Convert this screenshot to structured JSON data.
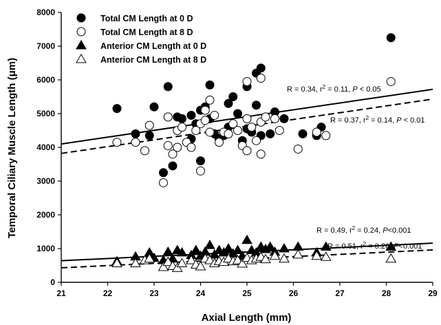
{
  "chart_data": {
    "type": "scatter",
    "title": "",
    "xlabel": "Axial Length (mm)",
    "ylabel": "Temporal Ciliary Muscle Length (μm)",
    "xlim": [
      21,
      29
    ],
    "ylim": [
      0,
      8000
    ],
    "x_ticks": [
      "21",
      "22",
      "23",
      "24",
      "25",
      "26",
      "27",
      "28",
      "29"
    ],
    "y_ticks": [
      "0",
      "1000",
      "2000",
      "3000",
      "4000",
      "5000",
      "6000",
      "7000",
      "8000"
    ],
    "legend_position": "top-left",
    "series": [
      {
        "name": "Total CM Length at 0 D",
        "marker": "filled-circle",
        "points": [
          [
            22.2,
            5150
          ],
          [
            22.6,
            4400
          ],
          [
            22.9,
            4350
          ],
          [
            23.0,
            5200
          ],
          [
            23.2,
            3250
          ],
          [
            23.3,
            5800
          ],
          [
            23.4,
            3450
          ],
          [
            23.5,
            4900
          ],
          [
            23.6,
            4850
          ],
          [
            23.8,
            4950
          ],
          [
            23.8,
            4250
          ],
          [
            23.9,
            4700
          ],
          [
            24.0,
            3600
          ],
          [
            24.0,
            5100
          ],
          [
            24.1,
            5200
          ],
          [
            24.2,
            5850
          ],
          [
            24.2,
            4850
          ],
          [
            24.3,
            4400
          ],
          [
            24.4,
            4250
          ],
          [
            24.5,
            4350
          ],
          [
            24.6,
            5300
          ],
          [
            24.6,
            4600
          ],
          [
            24.7,
            5500
          ],
          [
            24.8,
            5000
          ],
          [
            24.9,
            4200
          ],
          [
            25.0,
            5800
          ],
          [
            25.0,
            4550
          ],
          [
            25.1,
            4450
          ],
          [
            25.2,
            5250
          ],
          [
            25.2,
            6200
          ],
          [
            25.3,
            6350
          ],
          [
            25.3,
            4350
          ],
          [
            25.5,
            4400
          ],
          [
            25.6,
            5050
          ],
          [
            25.8,
            4850
          ],
          [
            26.2,
            4400
          ],
          [
            26.5,
            4350
          ],
          [
            26.6,
            4600
          ],
          [
            28.1,
            7250
          ]
        ]
      },
      {
        "name": "Total CM Length at 8 D",
        "marker": "open-circle",
        "points": [
          [
            22.2,
            4150
          ],
          [
            22.6,
            4150
          ],
          [
            22.8,
            3900
          ],
          [
            22.9,
            4650
          ],
          [
            23.2,
            2950
          ],
          [
            23.3,
            4900
          ],
          [
            23.3,
            4050
          ],
          [
            23.4,
            3800
          ],
          [
            23.5,
            4500
          ],
          [
            23.5,
            4000
          ],
          [
            23.6,
            4600
          ],
          [
            23.7,
            4150
          ],
          [
            23.8,
            4000
          ],
          [
            23.9,
            4500
          ],
          [
            24.0,
            4700
          ],
          [
            24.0,
            3300
          ],
          [
            24.1,
            5100
          ],
          [
            24.1,
            4800
          ],
          [
            24.2,
            5400
          ],
          [
            24.2,
            4450
          ],
          [
            24.3,
            4950
          ],
          [
            24.4,
            4150
          ],
          [
            24.5,
            4450
          ],
          [
            24.6,
            4400
          ],
          [
            24.7,
            4700
          ],
          [
            24.8,
            4500
          ],
          [
            24.9,
            4050
          ],
          [
            25.0,
            4850
          ],
          [
            25.0,
            5950
          ],
          [
            25.0,
            3900
          ],
          [
            25.1,
            4600
          ],
          [
            25.2,
            4200
          ],
          [
            25.3,
            4750
          ],
          [
            25.3,
            6050
          ],
          [
            25.3,
            3800
          ],
          [
            25.4,
            4900
          ],
          [
            25.6,
            4850
          ],
          [
            25.7,
            4500
          ],
          [
            26.1,
            3950
          ],
          [
            26.5,
            4450
          ],
          [
            26.7,
            4350
          ],
          [
            28.1,
            5950
          ]
        ]
      },
      {
        "name": "Anterior CM Length at 0 D",
        "marker": "filled-triangle",
        "points": [
          [
            22.2,
            620
          ],
          [
            22.6,
            760
          ],
          [
            22.9,
            880
          ],
          [
            23.0,
            720
          ],
          [
            23.2,
            650
          ],
          [
            23.3,
            900
          ],
          [
            23.4,
            700
          ],
          [
            23.5,
            950
          ],
          [
            23.6,
            880
          ],
          [
            23.8,
            800
          ],
          [
            23.9,
            950
          ],
          [
            24.0,
            780
          ],
          [
            24.1,
            900
          ],
          [
            24.2,
            1100
          ],
          [
            24.3,
            820
          ],
          [
            24.4,
            950
          ],
          [
            24.5,
            880
          ],
          [
            24.6,
            1000
          ],
          [
            24.7,
            850
          ],
          [
            24.8,
            950
          ],
          [
            24.9,
            780
          ],
          [
            25.0,
            1250
          ],
          [
            25.1,
            950
          ],
          [
            25.2,
            880
          ],
          [
            25.3,
            1050
          ],
          [
            25.4,
            980
          ],
          [
            25.5,
            1050
          ],
          [
            25.6,
            900
          ],
          [
            25.8,
            1000
          ],
          [
            26.1,
            1050
          ],
          [
            26.5,
            880
          ],
          [
            26.7,
            1050
          ],
          [
            28.1,
            1050
          ]
        ]
      },
      {
        "name": "Anterior CM Length at 8 D",
        "marker": "open-triangle",
        "points": [
          [
            22.2,
            560
          ],
          [
            22.6,
            560
          ],
          [
            22.8,
            650
          ],
          [
            22.9,
            700
          ],
          [
            23.2,
            450
          ],
          [
            23.3,
            600
          ],
          [
            23.4,
            480
          ],
          [
            23.5,
            420
          ],
          [
            23.6,
            560
          ],
          [
            23.8,
            650
          ],
          [
            23.9,
            520
          ],
          [
            24.0,
            470
          ],
          [
            24.1,
            700
          ],
          [
            24.2,
            650
          ],
          [
            24.3,
            560
          ],
          [
            24.4,
            620
          ],
          [
            24.5,
            600
          ],
          [
            24.6,
            700
          ],
          [
            24.7,
            620
          ],
          [
            24.8,
            650
          ],
          [
            24.9,
            550
          ],
          [
            25.0,
            720
          ],
          [
            25.1,
            650
          ],
          [
            25.2,
            700
          ],
          [
            25.3,
            750
          ],
          [
            25.4,
            680
          ],
          [
            25.6,
            780
          ],
          [
            25.8,
            700
          ],
          [
            26.1,
            820
          ],
          [
            26.5,
            780
          ],
          [
            26.7,
            750
          ],
          [
            28.1,
            700
          ]
        ]
      }
    ],
    "regression_lines": [
      {
        "series": "Total CM Length at 0 D",
        "style": "solid",
        "x": [
          21,
          29
        ],
        "y": [
          4100,
          5720
        ],
        "label": {
          "r": "R = 0.34, r",
          "r2": " = 0.11, ",
          "p": "P",
          "pval": " < 0.05"
        }
      },
      {
        "series": "Total CM Length at 8 D",
        "style": "dashed",
        "x": [
          21,
          29
        ],
        "y": [
          3820,
          5430
        ],
        "label": {
          "r": "R = 0.37, r",
          "r2": " = 0.14, ",
          "p": "P",
          "pval": " < 0.01"
        }
      },
      {
        "series": "Anterior CM Length at 0 D",
        "style": "solid",
        "x": [
          21,
          29
        ],
        "y": [
          640,
          1160
        ],
        "label": {
          "r": "R = 0.49, r",
          "r2": " = 0.24, ",
          "p": "P",
          "pval": "<0.001"
        }
      },
      {
        "series": "Anterior CM Length at 8 D",
        "style": "dashed",
        "x": [
          21,
          29
        ],
        "y": [
          430,
          960
        ],
        "label": {
          "r": "R = 0.51, r",
          "r2": " = 0.26, ",
          "p": "P",
          "pval": "<0.001"
        }
      }
    ]
  }
}
